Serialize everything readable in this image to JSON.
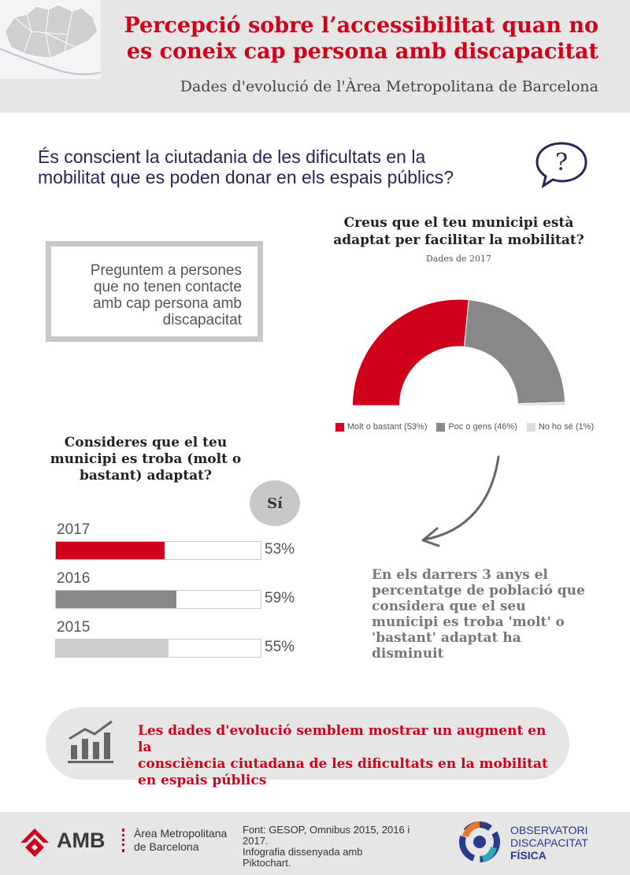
{
  "header": {
    "title_line1": "Percepció  sobre l’accessibilitat quan no",
    "title_line2": "es coneix cap persona amb discapacitat",
    "subtitle": "Dades d'evolució de l'Àrea Metropolitana de Barcelona"
  },
  "question": {
    "line1": "És conscient la ciutadania de les dificultats en la",
    "line2": "mobilitat que es poden donar en els espais públics?",
    "icon": "speech-bubble-question-icon"
  },
  "box": {
    "line1": "Preguntem a persones",
    "line2": "que no tenen contacte",
    "line3": "amb cap persona amb",
    "line4": "discapacitat"
  },
  "donut": {
    "title_line1": "Creus que el teu municipi està",
    "title_line2": "adaptat per facilitar la mobilitat?",
    "subtitle": "Dades de 2017"
  },
  "bars": {
    "title_line1": "Consideres que el teu",
    "title_line2": "municipi es troba (molt o",
    "title_line3": "bastant) adaptat?",
    "badge": "Sí"
  },
  "note": {
    "line1": "En els darrers 3 anys el",
    "line2": "percentatge de població que",
    "line3": "considera que el seu",
    "line4": "municipi es troba 'molt' o",
    "line5": "'bastant' adaptat ha",
    "line6": "disminuit"
  },
  "banner": {
    "line1": "Les dades d'evolució semblem mostrar un augment en la",
    "line2": "consciència ciutadana de les dificultats en la mobilitat",
    "line3": "en espais públics",
    "icon": "bar-trend-icon"
  },
  "footer": {
    "amb_word": "AMB",
    "amb_name_line1": "Àrea Metropolitana",
    "amb_name_line2": "de Barcelona",
    "source_line1": "Font: GESOP, Omnibus 2015, 2016 i",
    "source_line2": "2017.",
    "source_line3": "Infografia dissenyada amb",
    "source_line4": "Piktochart.",
    "obs_line1": "OBSERVATORI",
    "obs_line2": "DISCAPACITAT",
    "obs_line3": "FÍSICA"
  },
  "colors": {
    "accent_red": "#d0021b",
    "dark_grey": "#888888",
    "light_grey": "#cccccc",
    "navy": "#2b2459"
  },
  "chart_data": [
    {
      "type": "pie",
      "subtype": "half-donut",
      "title": "Creus que el teu municipi està adaptat per facilitar la mobilitat?",
      "subtitle": "Dades de 2017",
      "legend_position": "bottom",
      "slices": [
        {
          "label": "Molt o bastant (53%)",
          "value": 53,
          "color": "#d0021b"
        },
        {
          "label": "Poc o gens (46%)",
          "value": 46,
          "color": "#888888"
        },
        {
          "label": "No ho sé (1%)",
          "value": 1,
          "color": "#dddddd"
        }
      ]
    },
    {
      "type": "bar",
      "orientation": "horizontal",
      "title": "Consideres que el teu municipi es troba (molt o bastant) adaptat?",
      "series_label": "Sí",
      "categories": [
        "2017",
        "2016",
        "2015"
      ],
      "values": [
        53,
        59,
        55
      ],
      "value_labels": [
        "53%",
        "59%",
        "55%"
      ],
      "colors": [
        "#d0021b",
        "#888888",
        "#cccccc"
      ],
      "xlim": [
        0,
        100
      ]
    }
  ]
}
